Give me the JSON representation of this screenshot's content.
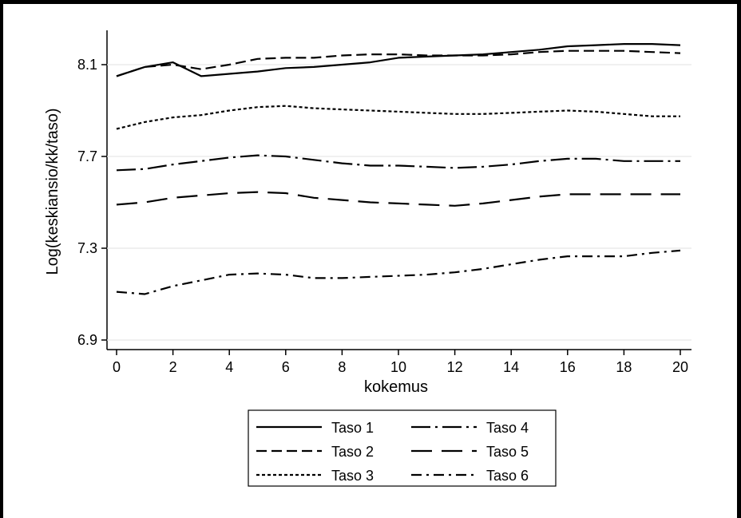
{
  "chart_data": {
    "type": "line",
    "xlabel": "kokemus",
    "ylabel": "Log(keskiansio/kk/taso)",
    "xlim": [
      0,
      20
    ],
    "ylim": [
      6.9,
      8.28
    ],
    "xticks": [
      0,
      2,
      4,
      6,
      8,
      10,
      12,
      14,
      16,
      18,
      20
    ],
    "yticks": [
      6.9,
      7.3,
      7.7,
      8.1
    ],
    "ytick_labels": [
      "6.9",
      "7.3",
      "7.7",
      "8.1"
    ],
    "grid": "horizontal",
    "legend_position": "bottom",
    "x": [
      0,
      1,
      2,
      3,
      4,
      5,
      6,
      7,
      8,
      9,
      10,
      11,
      12,
      13,
      14,
      15,
      16,
      17,
      18,
      19,
      20
    ],
    "series": [
      {
        "name": "Taso 1",
        "dash": "solid",
        "values": [
          8.05,
          8.09,
          8.11,
          8.05,
          8.06,
          8.07,
          8.085,
          8.09,
          8.1,
          8.11,
          8.13,
          8.135,
          8.14,
          8.145,
          8.155,
          8.165,
          8.18,
          8.185,
          8.19,
          8.19,
          8.185
        ]
      },
      {
        "name": "Taso 2",
        "dash": "dash",
        "values": [
          8.05,
          8.09,
          8.1,
          8.08,
          8.1,
          8.125,
          8.13,
          8.13,
          8.14,
          8.145,
          8.145,
          8.14,
          8.14,
          8.14,
          8.145,
          8.155,
          8.16,
          8.16,
          8.16,
          8.155,
          8.15
        ]
      },
      {
        "name": "Taso 3",
        "dash": "dot",
        "values": [
          7.82,
          7.85,
          7.87,
          7.88,
          7.9,
          7.915,
          7.92,
          7.91,
          7.905,
          7.9,
          7.895,
          7.89,
          7.885,
          7.885,
          7.89,
          7.895,
          7.9,
          7.895,
          7.885,
          7.875,
          7.875
        ]
      },
      {
        "name": "Taso 4",
        "dash": "longdashdot",
        "values": [
          7.64,
          7.645,
          7.665,
          7.68,
          7.695,
          7.705,
          7.7,
          7.685,
          7.67,
          7.66,
          7.66,
          7.655,
          7.65,
          7.655,
          7.665,
          7.68,
          7.69,
          7.69,
          7.68,
          7.68,
          7.68
        ]
      },
      {
        "name": "Taso 5",
        "dash": "longdash",
        "values": [
          7.49,
          7.5,
          7.52,
          7.53,
          7.54,
          7.545,
          7.54,
          7.52,
          7.51,
          7.5,
          7.495,
          7.49,
          7.485,
          7.495,
          7.51,
          7.525,
          7.535,
          7.535,
          7.535,
          7.535,
          7.535
        ]
      },
      {
        "name": "Taso 6",
        "dash": "dashdot",
        "values": [
          7.11,
          7.1,
          7.135,
          7.16,
          7.185,
          7.19,
          7.185,
          7.17,
          7.17,
          7.175,
          7.18,
          7.185,
          7.195,
          7.21,
          7.23,
          7.25,
          7.265,
          7.265,
          7.265,
          7.28,
          7.29
        ]
      }
    ]
  }
}
